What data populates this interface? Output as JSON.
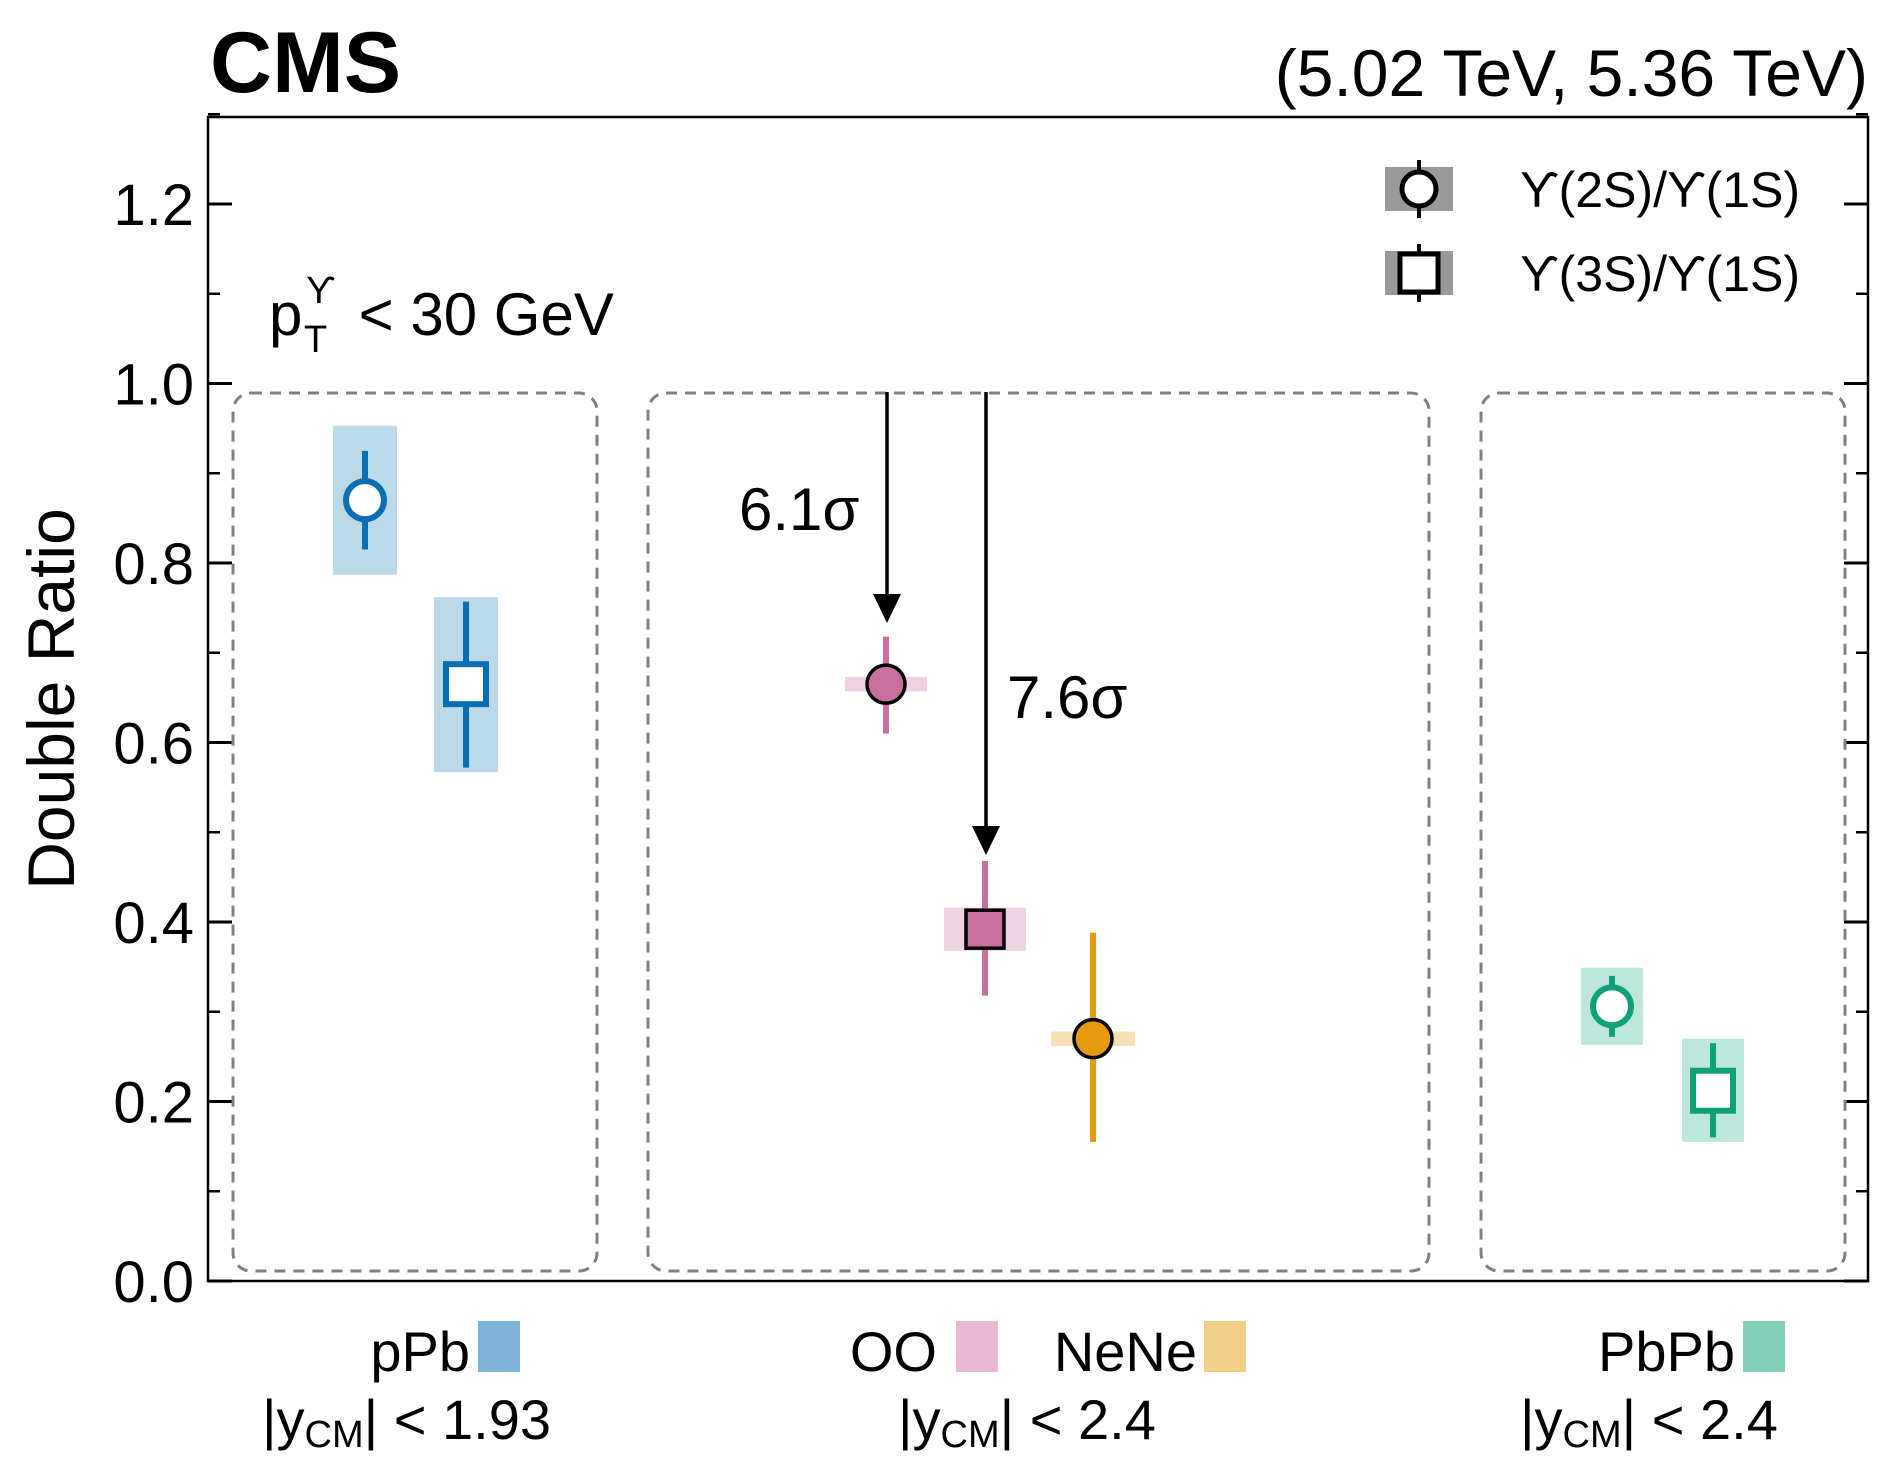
{
  "header": {
    "experiment": "CMS",
    "energy": "(5.02 TeV, 5.36 TeV)"
  },
  "chart_data": {
    "type": "scatter",
    "ylabel": "Double Ratio",
    "ylim": [
      0.0,
      1.3
    ],
    "yticks": [
      0.0,
      0.2,
      0.4,
      0.6,
      0.8,
      1.0,
      1.2
    ],
    "ytick_labels": [
      "0.0",
      "0.2",
      "0.4",
      "0.6",
      "0.8",
      "1.0",
      "1.2"
    ],
    "grid": false,
    "legend_position": "top-right",
    "cut_label": {
      "main": "p",
      "sup": "ϒ",
      "sub": "T",
      "rest": " < 30 GeV"
    },
    "legend": [
      {
        "marker": "circle",
        "label": "ϒ(2S)/ϒ(1S)"
      },
      {
        "marker": "square",
        "label": "ϒ(3S)/ϒ(1S)"
      }
    ],
    "colors": {
      "pPb": "#0a6fb0",
      "pPb_syst": "#bcd9ea",
      "OO": "#c9709f",
      "OO_syst": "#efd2e2",
      "NeNe": "#e59b0d",
      "NeNe_syst": "#f6dfb2",
      "PbPb": "#10a07a",
      "PbPb_syst": "#bde7dc"
    },
    "systems": [
      {
        "name": "pPb",
        "rapidity": "|y_CM| < 1.93",
        "colors": [
          "#0a6fb0"
        ]
      },
      {
        "name": "OO",
        "second_name": "NeNe",
        "rapidity": "|y_CM| < 2.4",
        "colors": [
          "#c9709f",
          "#e59b0d"
        ]
      },
      {
        "name": "PbPb",
        "rapidity": "|y_CM| < 2.4",
        "colors": [
          "#10a07a"
        ]
      }
    ],
    "points": [
      {
        "system": "pPb",
        "ratio": "2S/1S",
        "marker": "circle",
        "filled": false,
        "value": 0.87,
        "stat": [
          0.815,
          0.925
        ],
        "syst": [
          0.787,
          0.953
        ],
        "color": "#0a6fb0",
        "syst_color": "#bcd9ea"
      },
      {
        "system": "pPb",
        "ratio": "3S/1S",
        "marker": "square",
        "filled": false,
        "value": 0.665,
        "stat": [
          0.572,
          0.757
        ],
        "syst": [
          0.567,
          0.762
        ],
        "color": "#0a6fb0",
        "syst_color": "#bcd9ea"
      },
      {
        "system": "OO",
        "ratio": "2S/1S",
        "marker": "circle",
        "filled": true,
        "value": 0.665,
        "stat": [
          0.61,
          0.718
        ],
        "syst": [
          0.657,
          0.673
        ],
        "color": "#c9709f",
        "syst_color": "#efd2e2"
      },
      {
        "system": "OO",
        "ratio": "3S/1S",
        "marker": "square",
        "filled": true,
        "value": 0.392,
        "stat": [
          0.318,
          0.468
        ],
        "syst": [
          0.368,
          0.416
        ],
        "color": "#c9709f",
        "syst_color": "#efd2e2"
      },
      {
        "system": "NeNe",
        "ratio": "2S/1S",
        "marker": "circle",
        "filled": true,
        "value": 0.27,
        "stat": [
          0.155,
          0.388
        ],
        "syst": [
          0.262,
          0.278
        ],
        "color": "#e59b0d",
        "syst_color": "#f6dfb2"
      },
      {
        "system": "PbPb",
        "ratio": "2S/1S",
        "marker": "circle",
        "filled": false,
        "value": 0.306,
        "stat": [
          0.272,
          0.34
        ],
        "syst": [
          0.263,
          0.349
        ],
        "color": "#10a07a",
        "syst_color": "#bde7dc"
      },
      {
        "system": "PbPb",
        "ratio": "3S/1S",
        "marker": "square",
        "filled": false,
        "value": 0.212,
        "stat": [
          0.16,
          0.265
        ],
        "syst": [
          0.155,
          0.27
        ],
        "color": "#10a07a",
        "syst_color": "#bde7dc"
      }
    ],
    "annotations": [
      {
        "text": "6.1σ",
        "target": "OO 2S/1S"
      },
      {
        "text": "7.6σ",
        "target": "OO 3S/1S"
      }
    ]
  }
}
